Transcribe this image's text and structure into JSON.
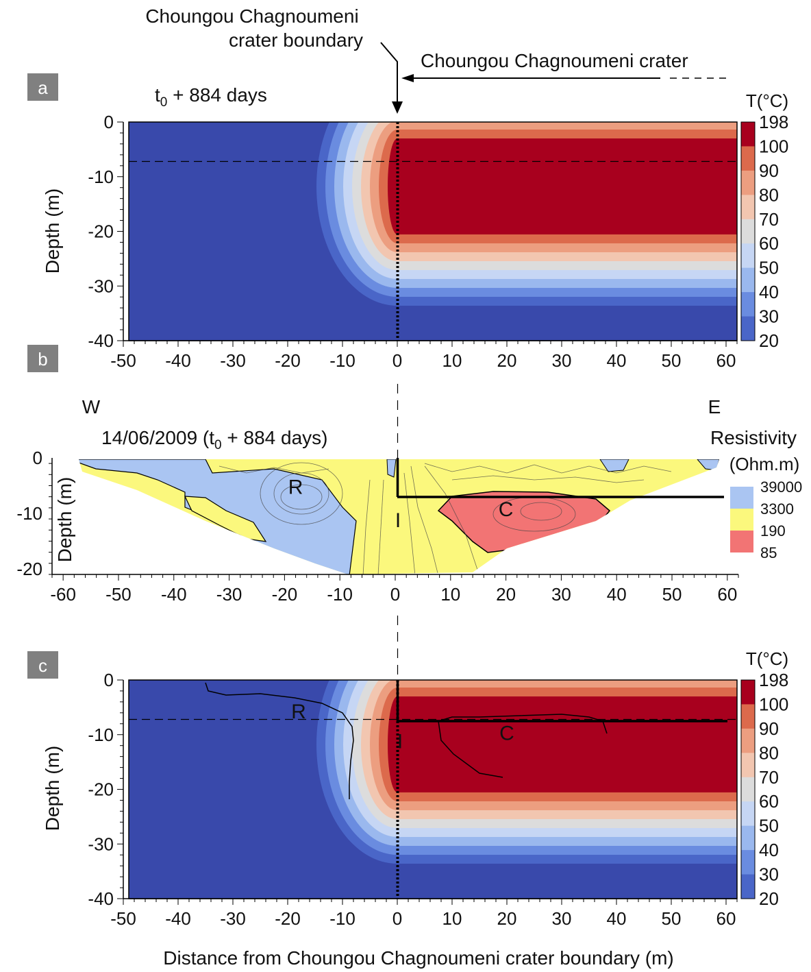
{
  "figure": {
    "boundary_label_line1": "Choungou Chagnoumeni",
    "boundary_label_line2": "crater boundary",
    "crater_label": "Choungou Chagnoumeni crater",
    "bottom_xlabel": "Distance from Choungou Chagnoumeni crater boundary (m)"
  },
  "colors": {
    "temperature_levels": [
      "#3949ab",
      "#4a66c8",
      "#6a8ce0",
      "#9ab8ee",
      "#c6d6f4",
      "#dcdcdc",
      "#f2c6b0",
      "#ec9e80",
      "#dc6a4c",
      "#a8001e"
    ],
    "resistivity_levels": [
      "#f27474",
      "#fbf87d",
      "#aac5f2"
    ],
    "panel_label_bg": "#808080",
    "outline": "#000000"
  },
  "chart_data": [
    {
      "id": "a",
      "type": "heatmap",
      "panel_label": "a",
      "title": "t0 + 884 days",
      "ylabel": "Depth (m)",
      "xlim": [
        -50,
        62
      ],
      "ylim": [
        -40,
        0
      ],
      "x_ticks": [
        -50,
        -40,
        -30,
        -20,
        -10,
        0,
        10,
        20,
        30,
        40,
        50,
        60
      ],
      "y_ticks": [
        0,
        -10,
        -20,
        -30,
        -40
      ],
      "colorbar_title": "T(°C)",
      "colorbar_labels": [
        "198",
        "100",
        "90",
        "80",
        "70",
        "60",
        "50",
        "40",
        "30",
        "20"
      ],
      "hot_core": {
        "x_start": 0,
        "x_end": 62,
        "depth_top": -3,
        "depth_bottom": -21,
        "temperature": "> 100"
      },
      "dashed_depth_line": -7
    },
    {
      "id": "b",
      "type": "heatmap",
      "panel_label": "b",
      "west_label": "W",
      "east_label": "E",
      "title": "14/06/2009  (t0 + 884 days)",
      "ylabel": "Depth (m)",
      "xlim": [
        -62,
        62
      ],
      "ylim": [
        -21,
        0
      ],
      "x_ticks": [
        -60,
        -50,
        -40,
        -30,
        -20,
        -10,
        0,
        10,
        20,
        30,
        40,
        50,
        60
      ],
      "y_ticks": [
        0,
        -10,
        -20
      ],
      "legend_title_line1": "Resistivity",
      "legend_title_line2": "(Ohm.m)",
      "legend_labels": [
        "39000",
        "3300",
        "190",
        "85"
      ],
      "zone_labels": [
        {
          "text": "R",
          "x": -18,
          "y": -6.5
        },
        {
          "text": "C",
          "x": 20,
          "y": -10.5
        },
        {
          "text": "I",
          "x": 0.5,
          "y": -12.5
        }
      ],
      "interface_line": {
        "x0": 0,
        "depth0": 0,
        "depth": -7,
        "x_end": 60
      }
    },
    {
      "id": "c",
      "type": "heatmap",
      "panel_label": "c",
      "ylabel": "Depth (m)",
      "xlabel": "Distance from Choungou Chagnoumeni crater boundary (m)",
      "xlim": [
        -50,
        62
      ],
      "ylim": [
        -40,
        0
      ],
      "x_ticks": [
        -50,
        -40,
        -30,
        -20,
        -10,
        0,
        10,
        20,
        30,
        40,
        50,
        60
      ],
      "y_ticks": [
        0,
        -10,
        -20,
        -30,
        -40
      ],
      "colorbar_title": "T(°C)",
      "colorbar_labels": [
        "198",
        "100",
        "90",
        "80",
        "70",
        "60",
        "50",
        "40",
        "30",
        "20"
      ],
      "zone_labels": [
        {
          "text": "R",
          "x": -18,
          "y": -7
        },
        {
          "text": "C",
          "x": 20,
          "y": -11
        },
        {
          "text": "I",
          "x": 0.5,
          "y": -12.5
        }
      ],
      "dashed_depth_line": -7
    }
  ]
}
